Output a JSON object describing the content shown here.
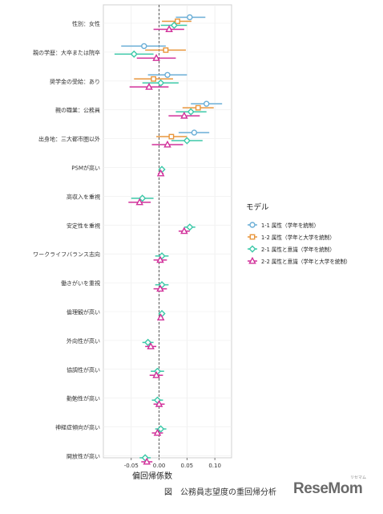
{
  "chart_data": {
    "type": "coefficient-plot",
    "xlabel": "偏回帰係数",
    "xlim": [
      -0.1,
      0.13
    ],
    "xticks": [
      -0.05,
      0.0,
      0.05,
      0.1
    ],
    "xtick_labels": [
      "-0.05",
      "0.00",
      "0.05",
      "0.10"
    ],
    "grid": true,
    "legend_title": "モデル",
    "legend_position": "right",
    "categories": [
      "性別：女性",
      "親の学歴：大卒または院卒",
      "奨学金の受給：あり",
      "親の職業：公務員",
      "出身地：三大都市圏以外",
      "PSMが高い",
      "高収入を重視",
      "安定性を重視",
      "ワークライフバランス志向",
      "働きがいを重視",
      "倫理観が高い",
      "外向性が高い",
      "協調性が高い",
      "勤勉性が高い",
      "神経症傾向が高い",
      "開放性が高い"
    ],
    "series": [
      {
        "name": "1-1 属性（学年を統制）",
        "color": "#6aaed6",
        "marker": "circle",
        "estimates": [
          {
            "est": 0.055,
            "lo": 0.03,
            "hi": 0.083
          },
          {
            "est": -0.027,
            "lo": -0.068,
            "hi": 0.012
          },
          {
            "est": 0.015,
            "lo": -0.02,
            "hi": 0.05
          },
          {
            "est": 0.085,
            "lo": 0.057,
            "hi": 0.113
          },
          {
            "est": 0.063,
            "lo": 0.035,
            "hi": 0.09
          },
          null,
          null,
          null,
          null,
          null,
          null,
          null,
          null,
          null,
          null,
          null
        ]
      },
      {
        "name": "1-2 属性（学年と大学を統制）",
        "color": "#e8963c",
        "marker": "square",
        "estimates": [
          {
            "est": 0.033,
            "lo": 0.005,
            "hi": 0.058
          },
          {
            "est": 0.012,
            "lo": -0.025,
            "hi": 0.048
          },
          {
            "est": -0.01,
            "lo": -0.045,
            "hi": 0.025
          },
          {
            "est": 0.07,
            "lo": 0.042,
            "hi": 0.098
          },
          {
            "est": 0.022,
            "lo": -0.005,
            "hi": 0.05
          },
          null,
          null,
          null,
          null,
          null,
          null,
          null,
          null,
          null,
          null,
          null
        ]
      },
      {
        "name": "2-1 属性と意識（学年を統制）",
        "color": "#3cc8a8",
        "marker": "diamond",
        "estimates": [
          {
            "est": 0.027,
            "lo": 0.003,
            "hi": 0.05
          },
          {
            "est": -0.045,
            "lo": -0.08,
            "hi": -0.01
          },
          {
            "est": 0.003,
            "lo": -0.03,
            "hi": 0.035
          },
          {
            "est": 0.057,
            "lo": 0.03,
            "hi": 0.085
          },
          {
            "est": 0.05,
            "lo": 0.022,
            "hi": 0.078
          },
          {
            "est": 0.005,
            "lo": 0.0,
            "hi": 0.01
          },
          {
            "est": -0.03,
            "lo": -0.05,
            "hi": -0.01
          },
          {
            "est": 0.055,
            "lo": 0.045,
            "hi": 0.065
          },
          {
            "est": 0.005,
            "lo": -0.007,
            "hi": 0.017
          },
          {
            "est": 0.005,
            "lo": -0.007,
            "hi": 0.017
          },
          {
            "est": 0.005,
            "lo": 0.001,
            "hi": 0.009
          },
          {
            "est": -0.02,
            "lo": -0.03,
            "hi": -0.01
          },
          {
            "est": -0.003,
            "lo": -0.015,
            "hi": 0.009
          },
          {
            "est": -0.003,
            "lo": -0.013,
            "hi": 0.007
          },
          {
            "est": 0.003,
            "lo": -0.007,
            "hi": 0.013
          },
          {
            "est": -0.025,
            "lo": -0.035,
            "hi": -0.015
          }
        ]
      },
      {
        "name": "2-2 属性と意識（学年と大学を統制）",
        "color": "#d1309a",
        "marker": "triangle",
        "estimates": [
          {
            "est": 0.018,
            "lo": -0.01,
            "hi": 0.045
          },
          {
            "est": -0.005,
            "lo": -0.04,
            "hi": 0.03
          },
          {
            "est": -0.018,
            "lo": -0.053,
            "hi": 0.017
          },
          {
            "est": 0.045,
            "lo": 0.017,
            "hi": 0.073
          },
          {
            "est": 0.015,
            "lo": -0.013,
            "hi": 0.043
          },
          {
            "est": 0.003,
            "lo": -0.002,
            "hi": 0.008
          },
          {
            "est": -0.035,
            "lo": -0.055,
            "hi": -0.015
          },
          {
            "est": 0.045,
            "lo": 0.035,
            "hi": 0.055
          },
          {
            "est": 0.002,
            "lo": -0.01,
            "hi": 0.014
          },
          {
            "est": 0.002,
            "lo": -0.01,
            "hi": 0.014
          },
          {
            "est": 0.003,
            "lo": -0.001,
            "hi": 0.007
          },
          {
            "est": -0.015,
            "lo": -0.025,
            "hi": -0.005
          },
          {
            "est": -0.005,
            "lo": -0.017,
            "hi": 0.007
          },
          {
            "est": 0.0,
            "lo": -0.01,
            "hi": 0.01
          },
          {
            "est": -0.003,
            "lo": -0.013,
            "hi": 0.007
          },
          {
            "est": -0.022,
            "lo": -0.032,
            "hi": -0.012
          }
        ]
      }
    ]
  },
  "caption": "図　公務員志望度の重回帰分析",
  "logo": {
    "text": "ReseMom",
    "ruby": "リセマム"
  }
}
